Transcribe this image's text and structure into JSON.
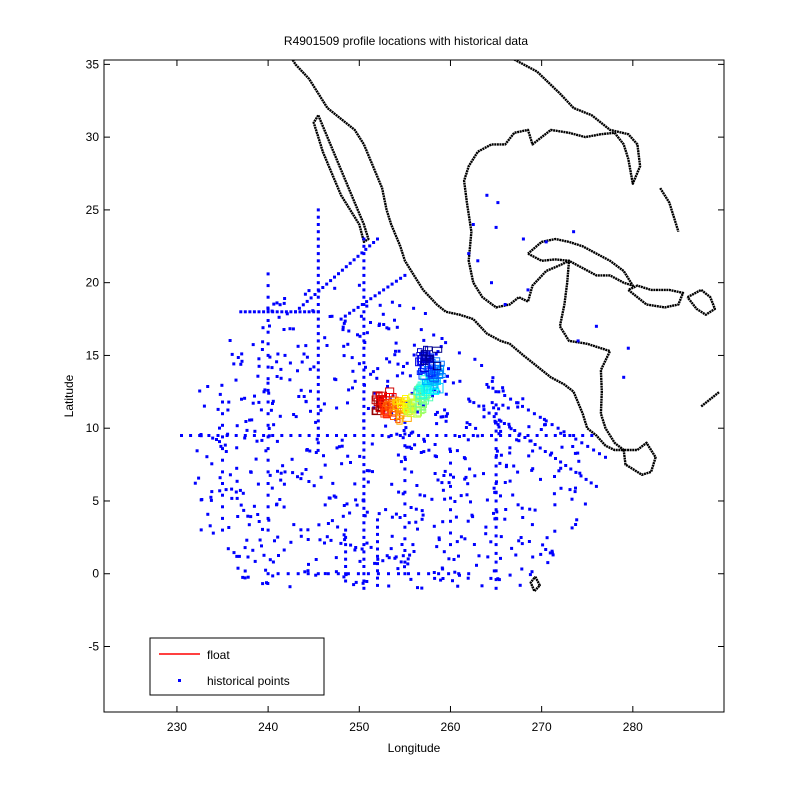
{
  "chart_data": {
    "type": "scatter",
    "title": "R4901509 profile locations with historical data",
    "xlabel": "Longitude",
    "ylabel": "Latitude",
    "xlim": [
      222,
      290
    ],
    "ylim": [
      -9.5,
      35.3
    ],
    "xticks": [
      230,
      240,
      250,
      260,
      270,
      280
    ],
    "yticks": [
      -5,
      0,
      5,
      10,
      15,
      20,
      25,
      30,
      35
    ],
    "grid": false,
    "legend_position": "bottom-left",
    "legend": [
      {
        "label": "float",
        "marker": "line",
        "color": "#ff0000"
      },
      {
        "label": "historical points",
        "marker": "dot",
        "color": "#0000ff"
      }
    ],
    "series": [
      {
        "name": "historical points",
        "color": "#0000ff",
        "lines": [
          {
            "lat": 9.5,
            "lon_from": 230.5,
            "lon_to": 276,
            "step": 1.0
          },
          {
            "lat": 18.0,
            "lon_from": 237,
            "lon_to": 245.5,
            "step": 0.5
          },
          {
            "lon": 250.5,
            "lat_from": -1,
            "lat_to": 23,
            "step": 0.5
          },
          {
            "lon": 245.5,
            "lat_from": 9,
            "lat_to": 25,
            "step": 0.5
          },
          {
            "lon": 240,
            "lat_from": 3,
            "lat_to": 21,
            "step": 0.8
          },
          {
            "lon": 235,
            "lat_from": 3,
            "lat_to": 12,
            "step": 0.8
          },
          {
            "lon": 265,
            "lat_from": -1,
            "lat_to": 12,
            "step": 0.6
          },
          {
            "lon": 255,
            "lat_from": 0,
            "lat_to": 11,
            "step": 0.8
          },
          {
            "lon": 260,
            "lat_from": 2,
            "lat_to": 9,
            "step": 0.8
          },
          {
            "lon": 252,
            "lat_from": -0.8,
            "lat_to": 4,
            "step": 0.5
          },
          {
            "lon": 248.5,
            "lat_from": -0.5,
            "lat_to": 3,
            "step": 0.5
          },
          {
            "lon_from": 243,
            "lat_from": 18,
            "lon_to": 252,
            "lat_to": 23,
            "step": 0.5
          },
          {
            "lon_from": 248,
            "lat_from": 17.5,
            "lon_to": 255,
            "lat_to": 20.5,
            "step": 0.5
          },
          {
            "lon_from": 262,
            "lat_from": 12,
            "lon_to": 276,
            "lat_to": 6,
            "step": 0.6
          },
          {
            "lon_from": 264,
            "lat_from": 13,
            "lon_to": 277,
            "lat_to": 8,
            "step": 0.7
          },
          {
            "lon_from": 240,
            "lat_from": 0,
            "lon_to": 262,
            "lat_to": 0,
            "step": 1.1
          }
        ],
        "scatter": {
          "count": 650,
          "lon_range": [
            232,
            280
          ],
          "lat_range": [
            -1,
            20
          ],
          "seed": 4901509
        },
        "gulf_points": [
          [
            265.2,
            25.5
          ],
          [
            262.5,
            24.0
          ],
          [
            263.0,
            21.5
          ],
          [
            264.5,
            20.0
          ],
          [
            268.0,
            23.0
          ],
          [
            270.5,
            22.8
          ],
          [
            273.5,
            23.5
          ],
          [
            266.0,
            18.5
          ],
          [
            268.5,
            19.5
          ],
          [
            262.0,
            22.0
          ],
          [
            265.0,
            23.8
          ],
          [
            264.0,
            26.0
          ],
          [
            276.0,
            17.0
          ],
          [
            274.0,
            16.0
          ],
          [
            279.0,
            13.5
          ],
          [
            279.5,
            15.5
          ]
        ]
      },
      {
        "name": "float",
        "color_scale": "jet (dark red → blue, trajectory)",
        "track": [
          [
            252.0,
            11.5
          ],
          [
            252.5,
            12.0
          ],
          [
            253.0,
            11.8
          ],
          [
            253.5,
            11.4
          ],
          [
            254.0,
            11.3
          ],
          [
            254.5,
            11.2
          ],
          [
            255.0,
            11.4
          ],
          [
            255.5,
            11.6
          ],
          [
            256.0,
            11.7
          ],
          [
            256.5,
            12.0
          ],
          [
            257.0,
            12.4
          ],
          [
            257.5,
            12.9
          ],
          [
            258.0,
            13.3
          ],
          [
            258.3,
            13.7
          ],
          [
            258.0,
            14.1
          ],
          [
            257.5,
            14.4
          ],
          [
            257.0,
            14.6
          ],
          [
            257.5,
            14.8
          ],
          [
            258.0,
            14.9
          ]
        ]
      }
    ],
    "coastlines": [
      [
        [
          266.5,
          35.5
        ],
        [
          269.5,
          34.5
        ],
        [
          272.0,
          33.0
        ],
        [
          273.5,
          32.0
        ],
        [
          275.5,
          31.5
        ],
        [
          277.5,
          30.5
        ],
        [
          279.5,
          30.2
        ],
        [
          280.5,
          29.5
        ],
        [
          280.8,
          28.0
        ],
        [
          280.0,
          26.8
        ],
        [
          279.5,
          28.5
        ],
        [
          279.0,
          29.5
        ],
        [
          278.0,
          30.3
        ],
        [
          276.5,
          30.2
        ],
        [
          274.8,
          30.0
        ],
        [
          273.0,
          30.3
        ],
        [
          271.0,
          30.5
        ],
        [
          269.0,
          29.5
        ],
        [
          268.5,
          30.5
        ],
        [
          267.0,
          30.3
        ],
        [
          266.0,
          29.5
        ],
        [
          264.5,
          29.5
        ],
        [
          263.0,
          29.0
        ],
        [
          262.0,
          28.0
        ],
        [
          261.5,
          27.0
        ],
        [
          261.8,
          25.5
        ],
        [
          262.3,
          23.5
        ],
        [
          262.0,
          21.5
        ],
        [
          262.5,
          20.0
        ],
        [
          263.5,
          19.0
        ],
        [
          265.0,
          18.3
        ],
        [
          266.5,
          18.5
        ],
        [
          267.5,
          19.0
        ],
        [
          268.5,
          18.7
        ],
        [
          269.0,
          19.8
        ],
        [
          270.5,
          20.8
        ],
        [
          272.0,
          21.2
        ],
        [
          273.0,
          21.5
        ],
        [
          272.8,
          20.0
        ],
        [
          272.5,
          18.5
        ],
        [
          272.0,
          17.0
        ],
        [
          273.0,
          16.0
        ],
        [
          274.0,
          15.9
        ],
        [
          275.0,
          15.8
        ],
        [
          276.5,
          15.5
        ],
        [
          277.5,
          15.3
        ],
        [
          276.5,
          14.0
        ],
        [
          276.6,
          12.5
        ],
        [
          276.5,
          11.0
        ],
        [
          277.0,
          10.0
        ],
        [
          278.0,
          9.0
        ],
        [
          279.0,
          8.5
        ],
        [
          280.5,
          8.5
        ],
        [
          281.5,
          9.0
        ],
        [
          282.5,
          8.0
        ],
        [
          282.0,
          7.0
        ],
        [
          281.0,
          6.8
        ],
        [
          280.0,
          7.2
        ],
        [
          279.2,
          7.5
        ],
        [
          279.0,
          8.5
        ],
        [
          278.0,
          8.5
        ],
        [
          277.0,
          8.8
        ],
        [
          276.0,
          9.5
        ],
        [
          275.0,
          10.0
        ],
        [
          274.5,
          11.0
        ],
        [
          273.5,
          12.5
        ],
        [
          272.5,
          13.0
        ],
        [
          271.0,
          13.5
        ],
        [
          270.0,
          14.0
        ],
        [
          268.0,
          15.0
        ],
        [
          266.5,
          15.8
        ],
        [
          265.5,
          16.0
        ],
        [
          264.0,
          16.5
        ],
        [
          262.5,
          17.5
        ],
        [
          261.0,
          17.8
        ],
        [
          259.5,
          18.0
        ],
        [
          258.5,
          18.5
        ],
        [
          257.0,
          19.5
        ],
        [
          256.0,
          20.5
        ],
        [
          255.0,
          21.5
        ],
        [
          254.5,
          22.5
        ],
        [
          253.5,
          24.0
        ],
        [
          253.0,
          25.0
        ],
        [
          252.5,
          26.5
        ],
        [
          251.5,
          28.0
        ],
        [
          250.5,
          29.5
        ],
        [
          249.5,
          30.5
        ],
        [
          248.5,
          31.0
        ],
        [
          247.5,
          31.5
        ],
        [
          246.5,
          32.0
        ],
        [
          245.5,
          33.0
        ],
        [
          244.5,
          34.0
        ],
        [
          243.0,
          35.0
        ],
        [
          242.5,
          35.5
        ]
      ],
      [
        [
          245.5,
          31.5
        ],
        [
          246.5,
          30.0
        ],
        [
          247.5,
          28.5
        ],
        [
          248.5,
          27.0
        ],
        [
          249.5,
          25.5
        ],
        [
          250.5,
          24.0
        ],
        [
          251.0,
          23.0
        ],
        [
          250.5,
          22.8
        ],
        [
          250.0,
          24.0
        ],
        [
          249.0,
          25.0
        ],
        [
          248.0,
          26.0
        ],
        [
          247.0,
          27.5
        ],
        [
          246.0,
          29.0
        ],
        [
          245.5,
          30.0
        ],
        [
          245.0,
          31.0
        ],
        [
          245.5,
          31.5
        ]
      ],
      [
        [
          268.5,
          22.0
        ],
        [
          270.0,
          21.5
        ],
        [
          271.5,
          21.6
        ],
        [
          273.0,
          21.5
        ],
        [
          274.5,
          21.0
        ],
        [
          276.0,
          20.5
        ],
        [
          277.5,
          20.5
        ],
        [
          279.0,
          20.0
        ],
        [
          280.0,
          19.8
        ],
        [
          279.0,
          20.8
        ],
        [
          277.5,
          21.5
        ],
        [
          276.0,
          22.0
        ],
        [
          274.5,
          22.5
        ],
        [
          273.0,
          22.8
        ],
        [
          271.5,
          23.0
        ],
        [
          270.0,
          22.8
        ],
        [
          268.5,
          22.0
        ]
      ],
      [
        [
          279.5,
          19.5
        ],
        [
          281.5,
          18.5
        ],
        [
          283.5,
          18.3
        ],
        [
          285.0,
          18.5
        ],
        [
          285.5,
          19.3
        ],
        [
          284.0,
          19.5
        ],
        [
          282.0,
          19.5
        ],
        [
          280.5,
          19.8
        ],
        [
          279.5,
          19.5
        ]
      ],
      [
        [
          286.0,
          19.0
        ],
        [
          287.5,
          19.5
        ],
        [
          288.5,
          19.0
        ],
        [
          289.0,
          18.2
        ],
        [
          288.0,
          17.8
        ],
        [
          287.0,
          18.2
        ],
        [
          286.0,
          19.0
        ]
      ],
      [
        [
          283.0,
          26.5
        ],
        [
          284.0,
          25.5
        ],
        [
          284.5,
          24.5
        ],
        [
          285.0,
          23.5
        ]
      ],
      [
        [
          287.5,
          11.5
        ],
        [
          288.5,
          12.0
        ],
        [
          289.5,
          12.5
        ]
      ],
      [
        [
          269.3,
          -0.2
        ],
        [
          269.8,
          -0.8
        ],
        [
          269.2,
          -1.2
        ],
        [
          268.8,
          -0.6
        ],
        [
          269.3,
          -0.2
        ]
      ]
    ]
  }
}
